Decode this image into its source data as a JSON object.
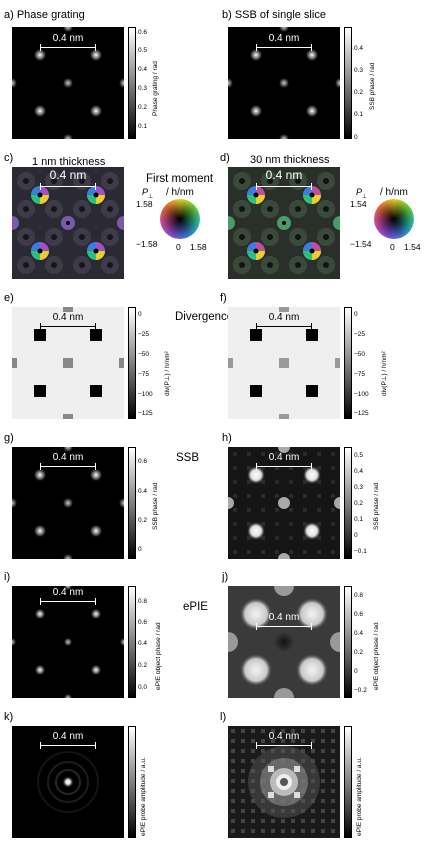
{
  "labels": {
    "a": "a) Phase grating",
    "b": "b) SSB of single slice",
    "c": "c)",
    "d": "d)",
    "e": "e)",
    "f": "f)",
    "g": "g)",
    "h": "h)",
    "i": "i)",
    "j": "j)",
    "k": "k)",
    "l": "l)"
  },
  "thickness": {
    "c": "1 nm thickness",
    "d": "30 nm thickness"
  },
  "sections": {
    "first_moment": "First moment",
    "divergence": "Divergence",
    "ssb": "SSB",
    "epie": "ePIE"
  },
  "scale_bar": "0.4 nm",
  "colorbars": {
    "a": {
      "label": "Phase grating / rad",
      "ticks": [
        "0.6",
        "0.5",
        "0.4",
        "0.3",
        "0.2",
        "0.1"
      ]
    },
    "b": {
      "label": "SSB phase / rad",
      "ticks": [
        "0.4",
        "0.3",
        "0.2",
        "0.1",
        "0"
      ]
    },
    "e": {
      "label": "div(P⊥) / h/nm²",
      "ticks": [
        "0",
        "−25",
        "−50",
        "−75",
        "−100",
        "−125"
      ]
    },
    "f": {
      "label": "div(P⊥) / h/nm²",
      "ticks": [
        "0",
        "−25",
        "−50",
        "−75",
        "−100",
        "−125"
      ]
    },
    "g": {
      "label": "SSB phase / rad",
      "ticks": [
        "0.6",
        "0.4",
        "0.2",
        "0"
      ]
    },
    "h": {
      "label": "SSB phase / rad",
      "ticks": [
        "0.5",
        "0.4",
        "0.3",
        "0.2",
        "0.1",
        "0",
        "−0.1"
      ]
    },
    "i": {
      "label": "ePIE object phase / rad",
      "ticks": [
        "0.8",
        "0.6",
        "0.4",
        "0.2",
        "0.0"
      ]
    },
    "j": {
      "label": "ePIE object phase / rad",
      "ticks": [
        "0.8",
        "0.6",
        "0.4",
        "0.2",
        "0",
        "−0.2"
      ]
    },
    "k": {
      "label": "ePIE probe amplitude / a.u."
    },
    "l": {
      "label": "ePIE probe amplitude / a.u."
    }
  },
  "wheels": {
    "c": {
      "axis": "/ h/nm",
      "top": "1.58",
      "left": "−1.58",
      "zero": "0",
      "right": "1.58"
    },
    "d": {
      "axis": "/ h/nm",
      "top": "1.54",
      "left": "−1.54",
      "zero": "0",
      "right": "1.54"
    }
  }
}
